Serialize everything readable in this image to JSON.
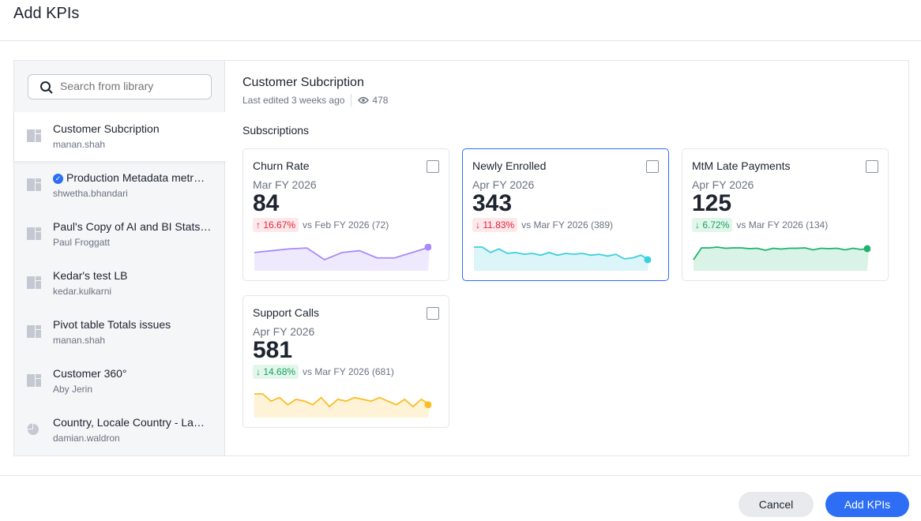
{
  "dialog": {
    "title": "Add KPIs"
  },
  "search": {
    "placeholder": "Search from library"
  },
  "sidebar": {
    "items": [
      {
        "title": "Customer Subcription",
        "owner": "manan.shah",
        "icon": "liveboard-icon",
        "active": true
      },
      {
        "title": "Production Metadata metr…",
        "owner": "shwetha.bhandari",
        "icon": "liveboard-icon",
        "verified": true
      },
      {
        "title": "Paul's Copy of AI and BI Stats…",
        "owner": "Paul Froggatt",
        "icon": "liveboard-icon"
      },
      {
        "title": "Kedar's test LB",
        "owner": "kedar.kulkarni",
        "icon": "liveboard-icon"
      },
      {
        "title": "Pivot table Totals issues",
        "owner": "manan.shah",
        "icon": "liveboard-icon"
      },
      {
        "title": "Customer 360°",
        "owner": "Aby Jerin",
        "icon": "liveboard-icon"
      },
      {
        "title": "Country, Locale Country - La…",
        "owner": "damian.waldron",
        "icon": "pie-chart-icon"
      }
    ]
  },
  "main": {
    "title": "Customer Subcription",
    "last_edited": "Last edited 3 weeks ago",
    "views": "478",
    "section": "Subscriptions",
    "cards": [
      {
        "name": "Churn Rate",
        "period": "Mar FY 2026",
        "value": "84",
        "change": "↑ 16.67%",
        "trend": "bad",
        "compare": "vs Feb FY 2026 (72)",
        "color": "#a78bfa",
        "fill": "#efe9fd",
        "checked": false,
        "spark": [
          75,
          76,
          77,
          77.5,
          71,
          75,
          76,
          72,
          72,
          75,
          78
        ]
      },
      {
        "name": "Newly Enrolled",
        "period": "Apr FY 2026",
        "value": "343",
        "change": "↓ 11.83%",
        "trend": "bad",
        "compare": "vs Mar FY 2026 (389)",
        "color": "#3ccfdf",
        "fill": "#dcf5f8",
        "checked": false,
        "selected": true,
        "spark": [
          400,
          400,
          394,
          398,
          393,
          394,
          392,
          393,
          391,
          394,
          391,
          393,
          392,
          393,
          391,
          392,
          390,
          392,
          387,
          388,
          391,
          386
        ]
      },
      {
        "name": "MtM Late Payments",
        "period": "Apr FY 2026",
        "value": "125",
        "change": "↓ 6.72%",
        "trend": "good",
        "compare": "vs Mar FY 2026 (134)",
        "color": "#1fb36d",
        "fill": "#d9f3e6",
        "checked": false,
        "spark": [
          100,
          130,
          130,
          132,
          129,
          130,
          130,
          128,
          129,
          124,
          129,
          127,
          129,
          129,
          130,
          125,
          129,
          128,
          129,
          125,
          129,
          126,
          128
        ]
      },
      {
        "name": "Support Calls",
        "period": "Apr FY 2026",
        "value": "581",
        "change": "↓ 14.68%",
        "trend": "good",
        "compare": "vs Mar FY 2026 (681)",
        "color": "#fbbd23",
        "fill": "#fef3d6",
        "checked": false,
        "spark": [
          600,
          600,
          596,
          598,
          594,
          597,
          596,
          594,
          598,
          593,
          597,
          596,
          598,
          597,
          596,
          598,
          596,
          594,
          597,
          593,
          597,
          594
        ]
      }
    ]
  },
  "footer": {
    "cancel": "Cancel",
    "add": "Add KPIs"
  }
}
